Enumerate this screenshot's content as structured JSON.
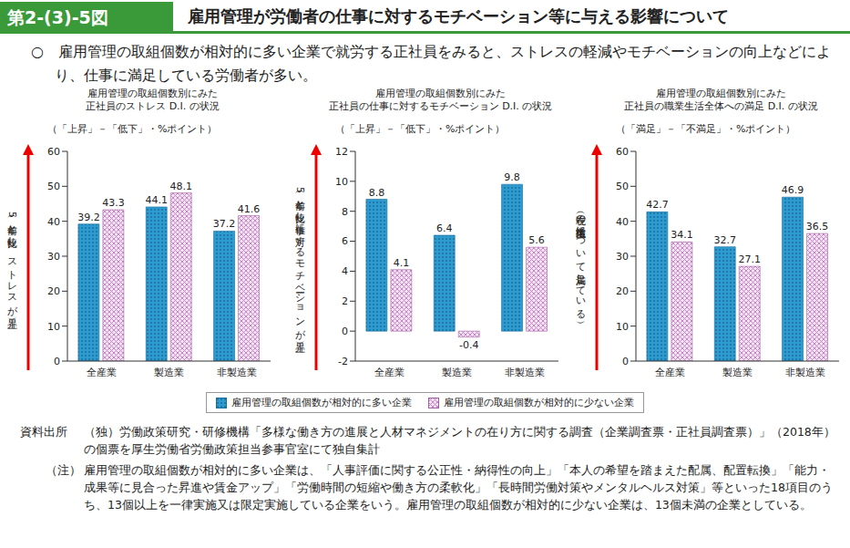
{
  "header": {
    "figure_number": "第2-(3)-5図",
    "title": "雇用管理が労働者の仕事に対するモチベーション等に与える影響について",
    "summary": "○　雇用管理の取組個数が相対的に多い企業で就労する正社員をみると、ストレスの軽減やモチベーションの向上などにより、仕事に満足している労働者が多い。"
  },
  "chart_data": [
    {
      "type": "bar",
      "title": "雇用管理の取組個数別にみた\n正社員のストレス D.I. の状況",
      "subtitle": "（「上昇」－「低下」・%ポイント）",
      "y_label": "（5年前と比較し、ストレスが上昇）",
      "categories": [
        "全産業",
        "製造業",
        "非製造業"
      ],
      "series": [
        {
          "name": "雇用管理の取組個数が相対的に多い企業",
          "color": "#2e9bd0",
          "values": [
            39.2,
            44.1,
            37.2
          ]
        },
        {
          "name": "雇用管理の取組個数が相対的に少ない企業",
          "color": "#c887c8",
          "values": [
            43.3,
            48.1,
            41.6
          ]
        }
      ],
      "ylim": [
        0,
        60
      ],
      "yticks": [
        0,
        10,
        20,
        30,
        40,
        50,
        60
      ],
      "data_labels": true
    },
    {
      "type": "bar",
      "title": "雇用管理の取組個数別にみた\n正社員の仕事に対するモチベーション D.I. の状況",
      "subtitle": "（「上昇」－「低下」・%ポイント）",
      "y_label": "（5年前と比較し仕事に対するモチベーションが上昇）",
      "categories": [
        "全産業",
        "製造業",
        "非製造業"
      ],
      "series": [
        {
          "name": "雇用管理の取組個数が相対的に多い企業",
          "color": "#2e9bd0",
          "values": [
            8.8,
            6.4,
            9.8
          ]
        },
        {
          "name": "雇用管理の取組個数が相対的に少ない企業",
          "color": "#c887c8",
          "values": [
            4.1,
            -0.4,
            5.6
          ]
        }
      ],
      "ylim": [
        -2,
        12
      ],
      "yticks": [
        -2,
        0,
        2,
        4,
        6,
        8,
        10,
        12
      ],
      "data_labels": true
    },
    {
      "type": "bar",
      "title": "雇用管理の取組個数別にみた\n正社員の職業生活全体への満足 D.I. の状況",
      "subtitle": "（「満足」－「不満足」・%ポイント）",
      "y_label": "（現在の職業生活について満足している）",
      "categories": [
        "全産業",
        "製造業",
        "非製造業"
      ],
      "series": [
        {
          "name": "雇用管理の取組個数が相対的に多い企業",
          "color": "#2e9bd0",
          "values": [
            42.7,
            32.7,
            46.9
          ]
        },
        {
          "name": "雇用管理の取組個数が相対的に少ない企業",
          "color": "#c887c8",
          "values": [
            34.1,
            27.1,
            36.5
          ]
        }
      ],
      "ylim": [
        0,
        60
      ],
      "yticks": [
        0,
        10,
        20,
        30,
        40,
        50,
        60
      ],
      "data_labels": true
    }
  ],
  "source_label": "資料出所",
  "source": "（独）労働政策研究・研修機構「多様な働き方の進展と人材マネジメントの在り方に関する調査（企業調査票・正社員調査票）」（2018年）の個票を厚生労働省労働政策担当参事官室にて独自集計",
  "note_label": "（注）",
  "note": "雇用管理の取組個数が相対的に多い企業は、「人事評価に関する公正性・納得性の向上」「本人の希望を踏まえた配属、配置転換」「能力・成果等に見合った昇進や賃金アップ」「労働時間の短縮や働き方の柔軟化」「長時間労働対策やメンタルヘルス対策」等といった18項目のうち、13個以上を一律実施又は限定実施している企業をいう。雇用管理の取組個数が相対的に少ない企業は、13個未満の企業としている。"
}
